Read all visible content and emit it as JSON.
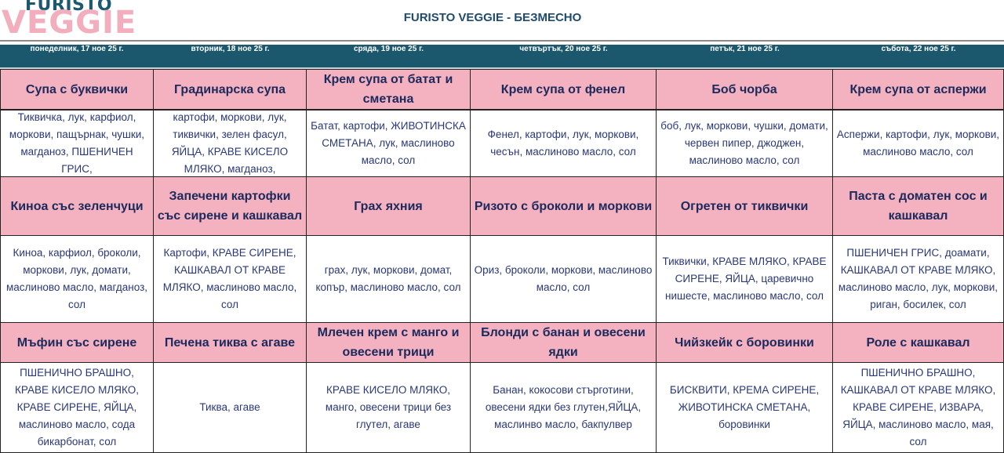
{
  "logo": {
    "line1": "FURISTO",
    "line2": "VEGGIE"
  },
  "title": "FURISTO VEGGIE - БЕЗМЕСНО",
  "colors": {
    "header_band": "#1b576d",
    "dish_bg": "#f4b1c0",
    "dish_text": "#1b2a5c",
    "ingredient_text": "#2a3878"
  },
  "days": [
    "понеделник, 17 ное 25 г.",
    "вторник, 18 ное 25 г.",
    "сряда, 19 ное 25 г.",
    "четвъртък, 20 ное 25 г.",
    "петък, 21 ное 25 г.",
    "събота, 22 ное 25 г."
  ],
  "meals": [
    {
      "dishes": [
        "Супа с буквички",
        "Градинарска супа",
        "Крем супа от батат и сметана",
        "Крем супа от фенел",
        "Боб чорба",
        "Крем супа от аспержи"
      ],
      "ingredients": [
        "Тиквичка, лук, карфиол, моркови, пащърнак, чушки, магданоз, ПШЕНИЧЕН ГРИС,",
        "картофи, моркови, лук, тиквички, зелен фасул, ЯЙЦА, КРАВЕ КИСЕЛО МЛЯКО, магданоз,",
        "Батат, картофи, ЖИВОТИНСКА СМЕТАНА, лук, маслиново масло, сол",
        "Фенел, картофи, лук, моркови, чесън, маслиново масло, сол",
        "боб, лук, моркови, чушки, домати, червен пипер, джоджен, маслиново масло, сол",
        "Аспержи, картофи, лук, моркови, маслиново масло, сол"
      ]
    },
    {
      "dishes": [
        "Киноа със зеленчуци",
        "Запечени картофки със сирене и кашкавал",
        "Грах яхния",
        "Ризото с броколи и моркови",
        "Огретен от тиквички",
        "Паста с доматен сос и кашкавал"
      ],
      "ingredients": [
        "Киноа, карфиол, броколи, моркови, лук, домати, маслиново масло, магданоз, сол",
        "Картофи, КРАВЕ СИРЕНЕ, КАШКАВАЛ ОТ КРАВЕ МЛЯКО, маслиново масло, сол",
        "грах, лук, моркови, домат, копър, маслиново масло, сол",
        "Ориз, броколи, моркови, маслиново масло, сол",
        "Тиквички, КРАВЕ МЛЯКО, КРАВЕ СИРЕНЕ, ЯЙЦА, царевично нишесте, маслиново масло, сол",
        "ПШЕНИЧЕН ГРИС, доамати, КАШКАВАЛ ОТ КРАВЕ МЛЯКО, маслиново масло, лук, моркови, риган, босилек, сол"
      ]
    },
    {
      "dishes": [
        "Мъфин със сирене",
        "Печена тиква с агаве",
        "Млечен крем с манго и овесени трици",
        "Блонди с банан и овесени ядки",
        "Чийзкейк с боровинки",
        "Роле с кашкавал"
      ],
      "ingredients": [
        "ПШЕНИЧНО БРАШНО, КРАВЕ КИСЕЛО МЛЯКО, КРАВЕ СИРЕНЕ, ЯЙЦА, маслиново масло, сода бикарбонат, сол",
        "Тиква, агаве",
        "КРАВЕ КИСЕЛО МЛЯКО, манго, овесени трици без глутел, агаве",
        "Банан, кокосови стърготини, овесени ядки без глутен,ЯЙЦА, маслинво масло, бакпулвер",
        "БИСКВИТИ, КРЕМА СИРЕНЕ, ЖИВОТИНСКА СМЕТАНА, боровинки",
        "ПШЕНИЧНО БРАШНО, КАШКАВАЛ ОТ КРАВЕ МЛЯКО, КРАВЕ СИРЕНЕ, ИЗВАРА, ЯЙЦА, маслиново масло, мая, сол"
      ]
    }
  ]
}
